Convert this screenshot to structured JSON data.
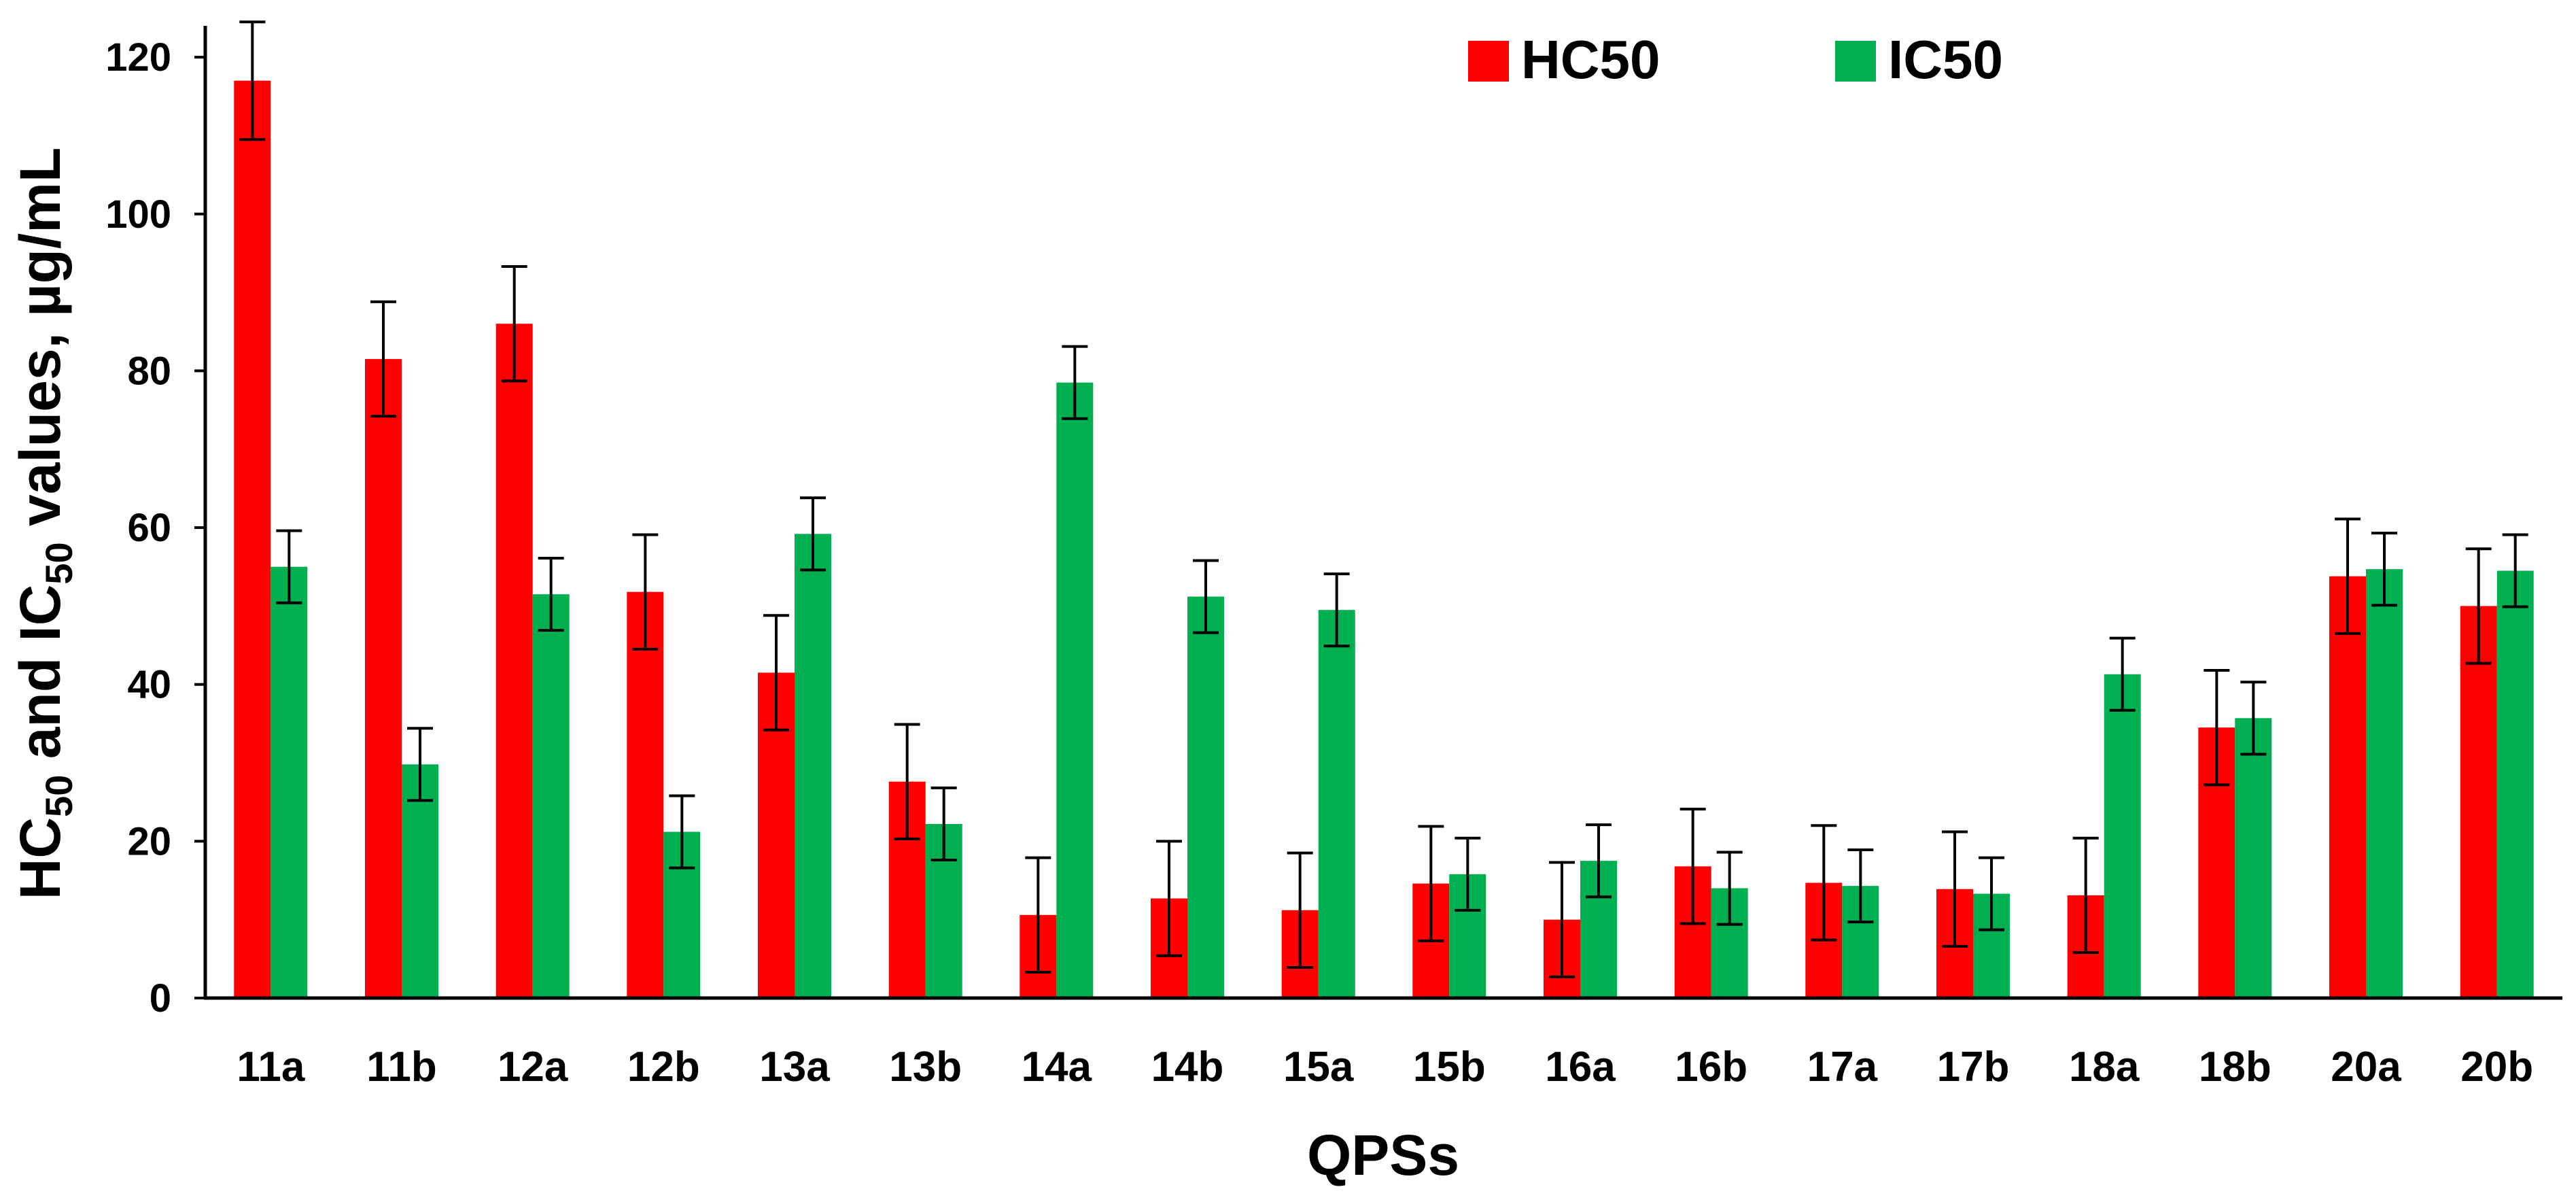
{
  "chart_data": {
    "type": "bar",
    "title": "",
    "xlabel": "QPSs",
    "ylabel": {
      "p1": "HC",
      "sub1": "50",
      "p2": " and IC",
      "sub2": "50",
      "p3": " values, µg/mL"
    },
    "ylim": [
      0,
      124
    ],
    "yticks": [
      0,
      20,
      40,
      60,
      80,
      100,
      120
    ],
    "grid": false,
    "legend_position": "top-right",
    "categories": [
      "11a",
      "11b",
      "12a",
      "12b",
      "13a",
      "13b",
      "14a",
      "14b",
      "15a",
      "15b",
      "16a",
      "16b",
      "17a",
      "17b",
      "18a",
      "18b",
      "20a",
      "20b"
    ],
    "series": [
      {
        "name": "HC50",
        "color": "#ff0000",
        "values": [
          117,
          81.5,
          86,
          51.8,
          41.5,
          27.6,
          10.6,
          12.7,
          11.2,
          14.6,
          10.0,
          16.8,
          14.7,
          13.9,
          13.1,
          34.5,
          53.8,
          50.0
        ],
        "errors": [
          7.5,
          7.3,
          7.3,
          7.3,
          7.3,
          7.3,
          7.3,
          7.3,
          7.3,
          7.3,
          7.3,
          7.3,
          7.3,
          7.3,
          7.3,
          7.3,
          7.3,
          7.3
        ]
      },
      {
        "name": "IC50",
        "color": "#00b050",
        "values": [
          55.0,
          29.8,
          51.5,
          21.2,
          59.2,
          22.2,
          78.5,
          51.2,
          49.5,
          15.8,
          17.5,
          14.0,
          14.3,
          13.3,
          41.3,
          35.7,
          54.7,
          54.5
        ],
        "errors": [
          4.6,
          4.6,
          4.6,
          4.6,
          4.6,
          4.6,
          4.6,
          4.6,
          4.6,
          4.6,
          4.6,
          4.6,
          4.6,
          4.6,
          4.6,
          4.6,
          4.6,
          4.6
        ]
      }
    ]
  }
}
